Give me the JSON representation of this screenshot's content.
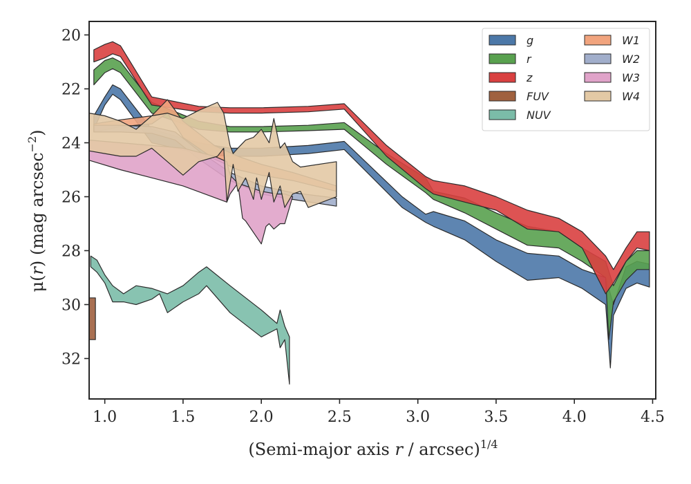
{
  "chart_data": {
    "type": "area",
    "xlabel": {
      "main": "(Semi-major axis ",
      "var": "r",
      "unit": " / arcsec)",
      "sup": "1/4"
    },
    "ylabel": {
      "mu": "μ(",
      "var": "r",
      "close": ")",
      "unit": " (mag arcsec",
      "sup": "−2",
      "end": ")"
    },
    "xlim": [
      0.9,
      4.52
    ],
    "ylim": [
      33.5,
      19.5
    ],
    "y_inverted": true,
    "x_ticks": [
      1.0,
      1.5,
      2.0,
      2.5,
      3.0,
      3.5,
      4.0,
      4.5
    ],
    "x_tick_labels": [
      "1.0",
      "1.5",
      "2.0",
      "2.5",
      "3.0",
      "3.5",
      "4.0",
      "4.5"
    ],
    "y_ticks": [
      20,
      22,
      24,
      26,
      28,
      30,
      32
    ],
    "y_tick_labels": [
      "20",
      "22",
      "24",
      "26",
      "28",
      "30",
      "32"
    ],
    "grid": false,
    "legend_placement": "top-right",
    "legend_columns": 2,
    "series": [
      {
        "name": "g",
        "color": "#4c78a8",
        "upper": [
          [
            0.93,
            23.0
          ],
          [
            1.0,
            22.3
          ],
          [
            1.05,
            21.85
          ],
          [
            1.1,
            22.0
          ],
          [
            1.3,
            23.5
          ],
          [
            1.6,
            24.0
          ],
          [
            1.8,
            24.2
          ],
          [
            2.0,
            24.2
          ],
          [
            2.3,
            24.1
          ],
          [
            2.53,
            23.95
          ],
          [
            2.9,
            26.0
          ],
          [
            3.05,
            26.65
          ],
          [
            3.1,
            26.55
          ],
          [
            3.3,
            26.9
          ],
          [
            3.5,
            27.6
          ],
          [
            3.7,
            28.1
          ],
          [
            3.9,
            28.2
          ],
          [
            4.05,
            28.7
          ],
          [
            4.2,
            29.0
          ],
          [
            4.25,
            30.0
          ],
          [
            4.33,
            28.6
          ],
          [
            4.4,
            28.4
          ],
          [
            4.48,
            28.5
          ]
        ],
        "lower": [
          [
            4.48,
            29.35
          ],
          [
            4.4,
            29.2
          ],
          [
            4.33,
            29.4
          ],
          [
            4.25,
            30.4
          ],
          [
            4.23,
            32.35
          ],
          [
            4.2,
            30.0
          ],
          [
            4.05,
            29.4
          ],
          [
            3.9,
            29.0
          ],
          [
            3.7,
            29.1
          ],
          [
            3.5,
            28.4
          ],
          [
            3.3,
            27.6
          ],
          [
            3.1,
            27.1
          ],
          [
            3.05,
            26.95
          ],
          [
            2.9,
            26.4
          ],
          [
            2.53,
            24.25
          ],
          [
            2.3,
            24.4
          ],
          [
            2.0,
            24.5
          ],
          [
            1.8,
            24.5
          ],
          [
            1.6,
            24.4
          ],
          [
            1.3,
            24.0
          ],
          [
            1.1,
            22.4
          ],
          [
            1.05,
            22.2
          ],
          [
            1.0,
            22.6
          ],
          [
            0.93,
            23.5
          ]
        ]
      },
      {
        "name": "r",
        "color": "#59a14f",
        "upper": [
          [
            0.93,
            21.3
          ],
          [
            1.0,
            20.95
          ],
          [
            1.05,
            20.85
          ],
          [
            1.1,
            21.0
          ],
          [
            1.3,
            22.5
          ],
          [
            1.6,
            23.2
          ],
          [
            1.8,
            23.4
          ],
          [
            2.0,
            23.4
          ],
          [
            2.3,
            23.35
          ],
          [
            2.53,
            23.25
          ],
          [
            2.8,
            24.4
          ],
          [
            3.05,
            25.3
          ],
          [
            3.1,
            25.8
          ],
          [
            3.3,
            26.05
          ],
          [
            3.5,
            26.6
          ],
          [
            3.7,
            27.1
          ],
          [
            3.9,
            27.3
          ],
          [
            4.05,
            27.9
          ],
          [
            4.2,
            28.4
          ],
          [
            4.25,
            29.3
          ],
          [
            4.33,
            28.4
          ],
          [
            4.4,
            28.0
          ],
          [
            4.48,
            28.0
          ]
        ],
        "lower": [
          [
            4.48,
            28.7
          ],
          [
            4.4,
            28.7
          ],
          [
            4.33,
            29.1
          ],
          [
            4.25,
            29.9
          ],
          [
            4.22,
            31.3
          ],
          [
            4.2,
            29.0
          ],
          [
            4.05,
            28.4
          ],
          [
            3.9,
            27.9
          ],
          [
            3.7,
            27.8
          ],
          [
            3.5,
            27.2
          ],
          [
            3.3,
            26.6
          ],
          [
            3.1,
            26.1
          ],
          [
            3.05,
            25.85
          ],
          [
            2.8,
            24.8
          ],
          [
            2.53,
            23.5
          ],
          [
            2.3,
            23.55
          ],
          [
            2.0,
            23.6
          ],
          [
            1.8,
            23.6
          ],
          [
            1.6,
            23.5
          ],
          [
            1.3,
            22.9
          ],
          [
            1.1,
            21.4
          ],
          [
            1.05,
            21.25
          ],
          [
            1.0,
            21.4
          ],
          [
            0.93,
            21.85
          ]
        ]
      },
      {
        "name": "z",
        "color": "#d94040",
        "upper": [
          [
            0.93,
            20.55
          ],
          [
            1.0,
            20.35
          ],
          [
            1.05,
            20.25
          ],
          [
            1.1,
            20.4
          ],
          [
            1.3,
            22.3
          ],
          [
            1.6,
            22.65
          ],
          [
            1.8,
            22.7
          ],
          [
            2.0,
            22.7
          ],
          [
            2.3,
            22.65
          ],
          [
            2.53,
            22.55
          ],
          [
            2.8,
            24.1
          ],
          [
            3.05,
            25.25
          ],
          [
            3.1,
            25.4
          ],
          [
            3.3,
            25.6
          ],
          [
            3.5,
            26.0
          ],
          [
            3.7,
            26.5
          ],
          [
            3.9,
            26.8
          ],
          [
            4.05,
            27.3
          ],
          [
            4.2,
            28.2
          ],
          [
            4.25,
            28.7
          ],
          [
            4.33,
            27.9
          ],
          [
            4.4,
            27.3
          ],
          [
            4.48,
            27.3
          ]
        ],
        "lower": [
          [
            4.48,
            28.0
          ],
          [
            4.4,
            27.9
          ],
          [
            4.33,
            28.4
          ],
          [
            4.25,
            29.2
          ],
          [
            4.2,
            29.6
          ],
          [
            4.05,
            27.9
          ],
          [
            3.9,
            27.3
          ],
          [
            3.7,
            27.2
          ],
          [
            3.5,
            26.5
          ],
          [
            3.3,
            26.2
          ],
          [
            3.1,
            25.9
          ],
          [
            3.05,
            25.7
          ],
          [
            2.8,
            24.5
          ],
          [
            2.53,
            22.75
          ],
          [
            2.3,
            22.85
          ],
          [
            2.0,
            22.9
          ],
          [
            1.8,
            22.9
          ],
          [
            1.6,
            22.85
          ],
          [
            1.3,
            22.6
          ],
          [
            1.1,
            20.8
          ],
          [
            1.05,
            20.7
          ],
          [
            1.0,
            20.85
          ],
          [
            0.93,
            21.0
          ]
        ]
      },
      {
        "name": "FUV",
        "color": "#a0613f",
        "upper": [
          [
            0.9,
            29.75
          ],
          [
            0.94,
            29.75
          ]
        ],
        "lower": [
          [
            0.94,
            31.3
          ],
          [
            0.9,
            31.3
          ]
        ]
      },
      {
        "name": "NUV",
        "color": "#7bbca8",
        "upper": [
          [
            0.91,
            28.2
          ],
          [
            0.95,
            28.35
          ],
          [
            1.0,
            28.9
          ],
          [
            1.05,
            29.3
          ],
          [
            1.12,
            29.6
          ],
          [
            1.2,
            29.3
          ],
          [
            1.3,
            29.4
          ],
          [
            1.4,
            29.6
          ],
          [
            1.5,
            29.3
          ],
          [
            1.6,
            28.8
          ],
          [
            1.65,
            28.6
          ],
          [
            1.8,
            29.3
          ],
          [
            2.0,
            30.2
          ],
          [
            2.1,
            30.7
          ],
          [
            2.12,
            30.2
          ],
          [
            2.15,
            30.8
          ],
          [
            2.18,
            31.2
          ]
        ],
        "lower": [
          [
            2.18,
            32.95
          ],
          [
            2.15,
            31.3
          ],
          [
            2.12,
            31.6
          ],
          [
            2.1,
            30.9
          ],
          [
            2.0,
            31.2
          ],
          [
            1.8,
            30.3
          ],
          [
            1.65,
            29.3
          ],
          [
            1.6,
            29.6
          ],
          [
            1.5,
            29.9
          ],
          [
            1.4,
            30.3
          ],
          [
            1.35,
            29.6
          ],
          [
            1.3,
            29.8
          ],
          [
            1.2,
            30.0
          ],
          [
            1.12,
            29.9
          ],
          [
            1.05,
            29.9
          ],
          [
            1.0,
            29.2
          ],
          [
            0.95,
            28.8
          ],
          [
            0.91,
            28.6
          ]
        ]
      },
      {
        "name": "W1",
        "color": "#f1a47e",
        "upper": [
          [
            0.93,
            23.3
          ],
          [
            1.1,
            23.15
          ],
          [
            1.3,
            23.0
          ],
          [
            1.4,
            22.4
          ],
          [
            1.5,
            23.2
          ],
          [
            1.7,
            24.1
          ],
          [
            1.85,
            24.5
          ],
          [
            2.0,
            24.8
          ],
          [
            2.2,
            25.1
          ],
          [
            2.48,
            25.6
          ]
        ],
        "lower": [
          [
            2.48,
            25.8
          ],
          [
            2.2,
            25.4
          ],
          [
            2.0,
            25.2
          ],
          [
            1.85,
            25.0
          ],
          [
            1.7,
            24.6
          ],
          [
            1.5,
            23.8
          ],
          [
            1.4,
            22.9
          ],
          [
            1.3,
            23.3
          ],
          [
            1.1,
            23.4
          ],
          [
            0.93,
            23.6
          ]
        ]
      },
      {
        "name": "W2",
        "color": "#a1aecb",
        "upper": [
          [
            0.93,
            23.35
          ],
          [
            1.1,
            23.35
          ],
          [
            1.3,
            23.4
          ],
          [
            1.45,
            23.6
          ],
          [
            1.6,
            24.3
          ],
          [
            1.8,
            25.1
          ],
          [
            2.0,
            25.6
          ],
          [
            2.2,
            25.85
          ],
          [
            2.48,
            26.05
          ]
        ],
        "lower": [
          [
            2.48,
            26.35
          ],
          [
            2.2,
            26.1
          ],
          [
            2.0,
            25.9
          ],
          [
            1.8,
            25.4
          ],
          [
            1.6,
            24.6
          ],
          [
            1.45,
            23.9
          ],
          [
            1.3,
            23.65
          ],
          [
            1.1,
            23.6
          ],
          [
            0.93,
            23.6
          ]
        ]
      },
      {
        "name": "W3",
        "color": "#e0a3c9",
        "upper": [
          [
            0.9,
            23.9
          ],
          [
            1.1,
            24.0
          ],
          [
            1.3,
            24.1
          ],
          [
            1.5,
            24.2
          ],
          [
            1.7,
            24.5
          ],
          [
            1.78,
            24.7
          ],
          [
            1.8,
            25.2
          ],
          [
            1.85,
            25.5
          ],
          [
            2.0,
            25.8
          ],
          [
            2.1,
            25.9
          ],
          [
            2.15,
            25.9
          ],
          [
            2.2,
            26.0
          ]
        ],
        "lower": [
          [
            2.2,
            26.0
          ],
          [
            2.15,
            27.0
          ],
          [
            2.12,
            27.0
          ],
          [
            2.08,
            27.2
          ],
          [
            2.05,
            27.0
          ],
          [
            2.03,
            27.1
          ],
          [
            2.0,
            27.75
          ],
          [
            1.9,
            26.9
          ],
          [
            1.88,
            26.8
          ],
          [
            1.85,
            25.5
          ],
          [
            1.8,
            25.9
          ],
          [
            1.78,
            26.2
          ],
          [
            1.5,
            25.6
          ],
          [
            1.3,
            25.3
          ],
          [
            1.1,
            25.0
          ],
          [
            0.9,
            24.65
          ]
        ]
      },
      {
        "name": "W4",
        "color": "#e3c9a5",
        "upper": [
          [
            0.9,
            22.9
          ],
          [
            1.0,
            23.0
          ],
          [
            1.1,
            23.2
          ],
          [
            1.2,
            23.5
          ],
          [
            1.3,
            23.0
          ],
          [
            1.4,
            22.9
          ],
          [
            1.5,
            23.1
          ],
          [
            1.6,
            22.8
          ],
          [
            1.72,
            22.5
          ],
          [
            1.76,
            22.9
          ],
          [
            1.8,
            24.1
          ],
          [
            1.82,
            24.4
          ],
          [
            1.85,
            24.2
          ],
          [
            1.9,
            23.9
          ],
          [
            1.95,
            23.8
          ],
          [
            2.0,
            23.5
          ],
          [
            2.05,
            24.0
          ],
          [
            2.08,
            23.1
          ],
          [
            2.12,
            24.2
          ],
          [
            2.15,
            24.0
          ],
          [
            2.2,
            24.7
          ],
          [
            2.25,
            24.9
          ],
          [
            2.48,
            24.7
          ]
        ],
        "lower": [
          [
            2.48,
            26.0
          ],
          [
            2.3,
            26.4
          ],
          [
            2.25,
            25.8
          ],
          [
            2.2,
            25.9
          ],
          [
            2.15,
            26.4
          ],
          [
            2.12,
            25.6
          ],
          [
            2.08,
            26.2
          ],
          [
            2.05,
            25.1
          ],
          [
            2.0,
            26.1
          ],
          [
            1.97,
            25.3
          ],
          [
            1.95,
            26.1
          ],
          [
            1.9,
            25.3
          ],
          [
            1.85,
            25.8
          ],
          [
            1.82,
            24.8
          ],
          [
            1.78,
            26.2
          ],
          [
            1.76,
            24.2
          ],
          [
            1.72,
            24.5
          ],
          [
            1.6,
            24.7
          ],
          [
            1.5,
            25.2
          ],
          [
            1.4,
            24.7
          ],
          [
            1.3,
            24.2
          ],
          [
            1.2,
            24.5
          ],
          [
            1.1,
            24.5
          ],
          [
            1.0,
            24.4
          ],
          [
            0.9,
            24.3
          ]
        ]
      }
    ]
  }
}
